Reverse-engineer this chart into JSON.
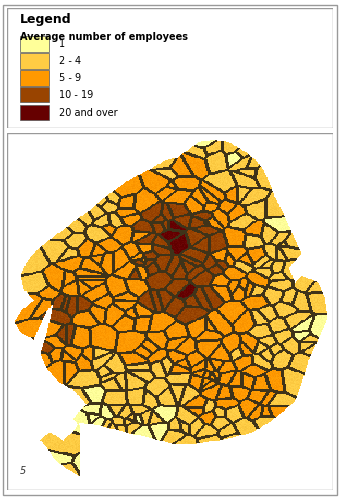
{
  "legend_title": "Legend",
  "legend_subtitle": "Average number of employees",
  "legend_entries": [
    {
      "label": "1",
      "color": "#FFFF99"
    },
    {
      "label": "2 - 4",
      "color": "#FFCC44"
    },
    {
      "label": "5 - 9",
      "color": "#FF9900"
    },
    {
      "label": "10 - 19",
      "color": "#994400"
    },
    {
      "label": "20 and over",
      "color": "#660000"
    }
  ],
  "background_color": "#FFFFFF",
  "figure_width": 3.4,
  "figure_height": 5.0,
  "dpi": 100,
  "footnote": "5"
}
